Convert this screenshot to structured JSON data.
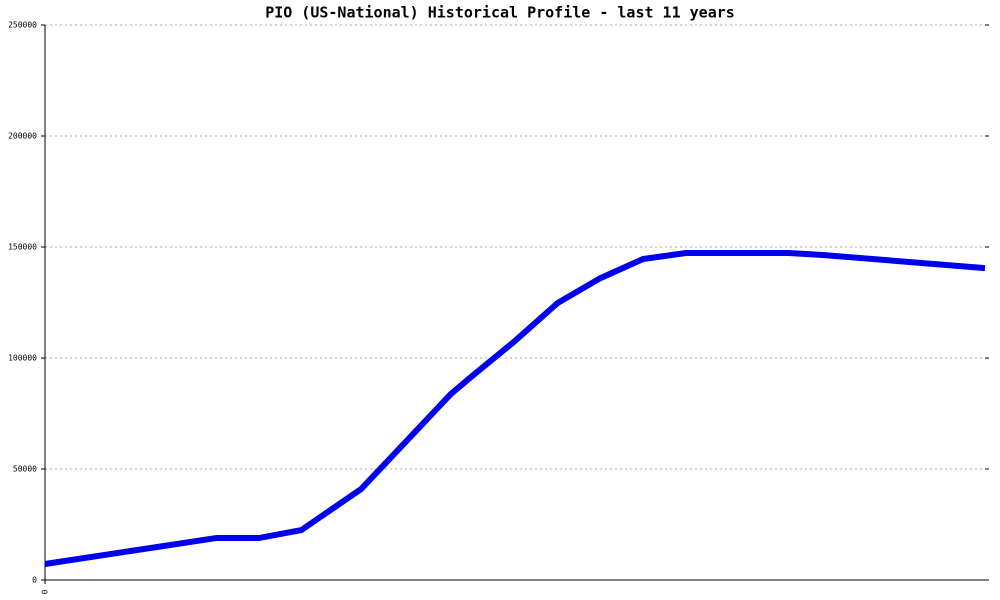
{
  "chart_data": {
    "type": "line",
    "title": "PIO (US-National) Historical Profile - last 11 years",
    "x": [
      0,
      2,
      2.5,
      3,
      3.7,
      4.75,
      5,
      5.5,
      6,
      6.5,
      7,
      7.5,
      8.7,
      9.1,
      11
    ],
    "series": [
      {
        "color": "#0000ee",
        "values": [
          7200,
          18900,
          18900,
          22500,
          41000,
          83800,
          91900,
          107700,
          124800,
          136000,
          144600,
          147300,
          147300,
          146400,
          140500
        ]
      }
    ],
    "xlim": [
      0,
      11
    ],
    "xticks": [
      0
    ],
    "ylim": [
      0,
      250000
    ],
    "yticks": [
      0,
      50000,
      100000,
      150000,
      200000,
      250000
    ],
    "grid": true
  }
}
